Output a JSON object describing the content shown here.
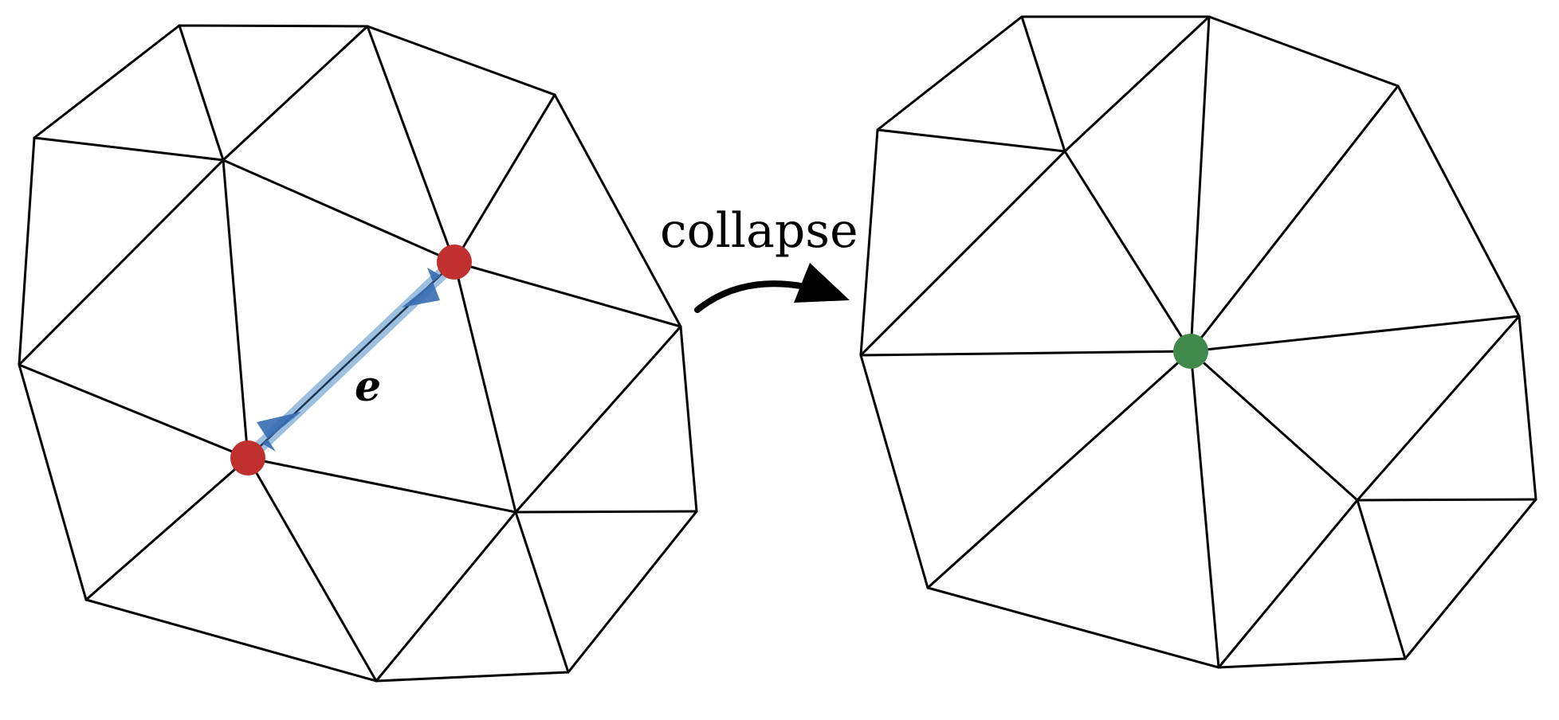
{
  "labels": {
    "operation": "collapse",
    "edge": "e"
  },
  "colors": {
    "mesh_edge": "#000000",
    "endpoint_vertex": "#c0302e",
    "merged_vertex": "#3f8a4a",
    "halfedge_highlight": "#9dc0e0",
    "halfedge_arrow": "#3b6fb3"
  },
  "icons": {
    "transition_arrow": "curved-arrow-right-icon"
  }
}
